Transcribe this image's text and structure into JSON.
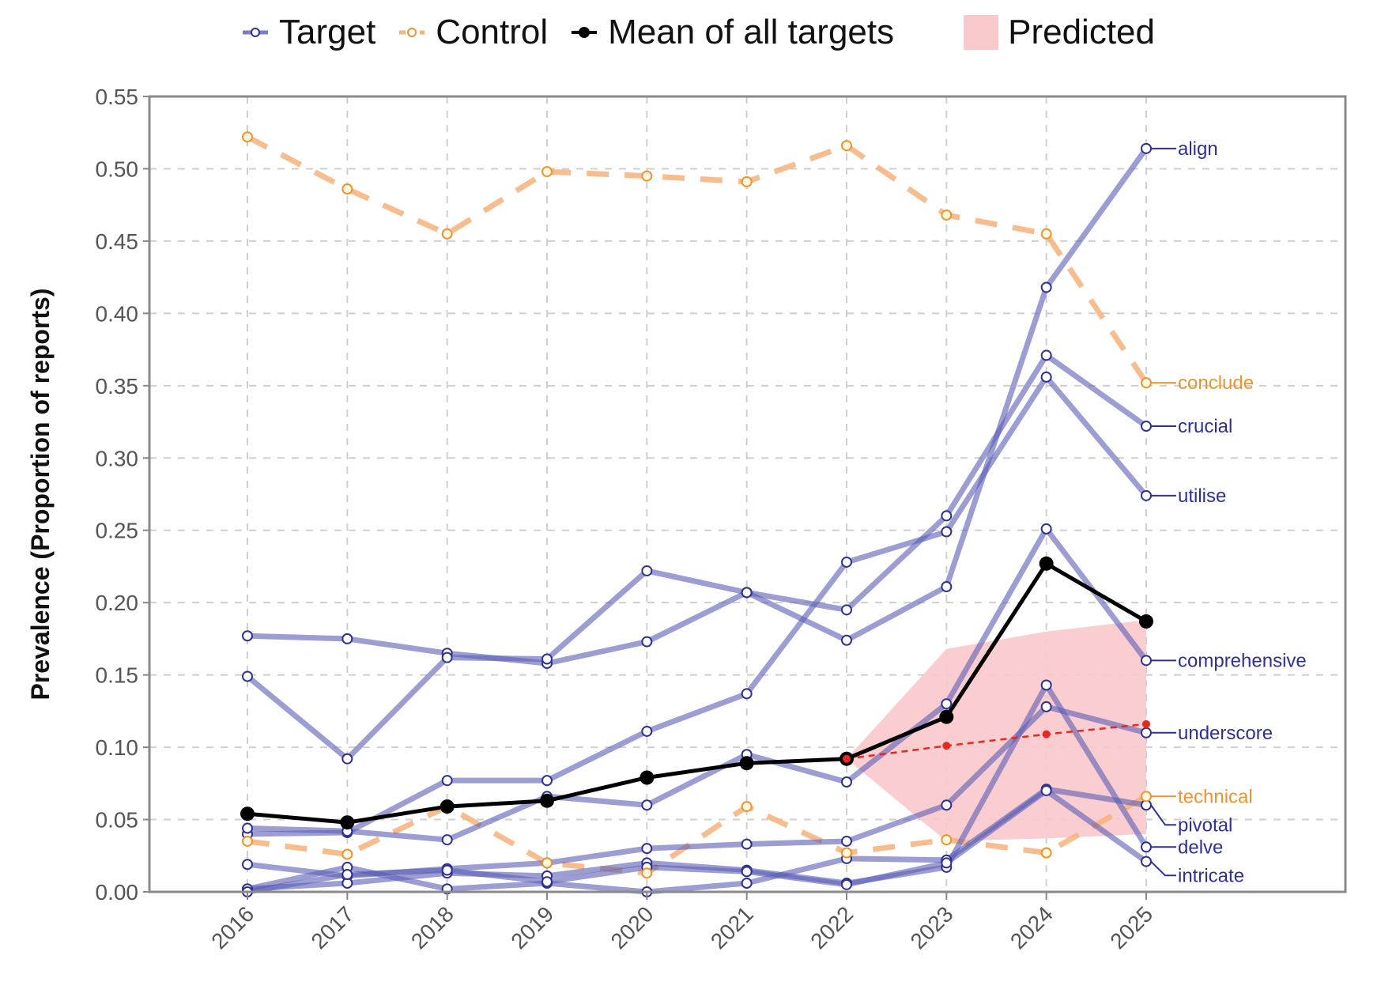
{
  "chart_data": {
    "type": "line",
    "title": "",
    "xlabel": "",
    "ylabel": "Prevalence (Proportion of reports)",
    "x": [
      2016,
      2017,
      2018,
      2019,
      2020,
      2021,
      2022,
      2023,
      2024,
      2025
    ],
    "x_tick_labels": [
      "2016",
      "2017",
      "2018",
      "2019",
      "2020",
      "2021",
      "2022",
      "2023",
      "2024",
      "2025"
    ],
    "ylim": [
      0,
      0.55
    ],
    "y_ticks": [
      0,
      0.05,
      0.1,
      0.15,
      0.2,
      0.25,
      0.3,
      0.35,
      0.4,
      0.45,
      0.5,
      0.55
    ],
    "y_tick_labels": [
      "0.00",
      "0.05",
      "0.10",
      "0.15",
      "0.20",
      "0.25",
      "0.30",
      "0.35",
      "0.40",
      "0.45",
      "0.50",
      "0.55"
    ],
    "grid": true,
    "legend": {
      "placement": "top",
      "entries": [
        {
          "label": "Target",
          "kind": "target"
        },
        {
          "label": "Control",
          "kind": "control"
        },
        {
          "label": "Mean of all targets",
          "kind": "mean"
        },
        {
          "label": "Predicted",
          "kind": "predicted"
        }
      ]
    },
    "colors": {
      "target": "#7b7fc4",
      "target_label": "#2e3192",
      "control": "#f7b27a",
      "control_label": "#f0932b",
      "mean": "#000000",
      "predicted_band": "#f9c9cb",
      "predicted_line": "#e8281e"
    },
    "series": [
      {
        "name": "align",
        "group": "target",
        "values": [
          0.177,
          0.175,
          0.165,
          0.158,
          0.173,
          0.207,
          0.174,
          0.211,
          0.418,
          0.514
        ]
      },
      {
        "name": "crucial",
        "group": "target",
        "values": [
          0.149,
          0.092,
          0.162,
          0.161,
          0.222,
          0.207,
          0.195,
          0.26,
          0.371,
          0.322
        ]
      },
      {
        "name": "utilise",
        "group": "target",
        "values": [
          0.04,
          0.041,
          0.077,
          0.077,
          0.111,
          0.137,
          0.228,
          0.249,
          0.356,
          0.274
        ]
      },
      {
        "name": "comprehensive",
        "group": "target",
        "values": [
          0.044,
          0.042,
          0.036,
          0.066,
          0.06,
          0.095,
          0.076,
          0.13,
          0.251,
          0.16
        ]
      },
      {
        "name": "underscore",
        "group": "target",
        "values": [
          0.019,
          0.011,
          0.016,
          0.02,
          0.03,
          0.033,
          0.035,
          0.06,
          0.128,
          0.11
        ]
      },
      {
        "name": "pivotal",
        "group": "target",
        "values": [
          0.002,
          0.017,
          0.002,
          0.006,
          0.0,
          0.006,
          0.023,
          0.022,
          0.071,
          0.06
        ]
      },
      {
        "name": "delve",
        "group": "target",
        "values": [
          0.002,
          0.006,
          0.013,
          0.011,
          0.02,
          0.015,
          0.006,
          0.017,
          0.143,
          0.031
        ]
      },
      {
        "name": "intricate",
        "group": "target",
        "values": [
          0.0,
          0.012,
          0.015,
          0.007,
          0.017,
          0.014,
          0.005,
          0.02,
          0.07,
          0.021
        ]
      },
      {
        "name": "conclude",
        "group": "control",
        "values": [
          0.522,
          0.486,
          0.455,
          0.498,
          0.495,
          0.491,
          0.516,
          0.468,
          0.455,
          0.352
        ]
      },
      {
        "name": "technical",
        "group": "control",
        "values": [
          0.035,
          0.026,
          0.059,
          0.02,
          0.013,
          0.059,
          0.027,
          0.036,
          0.027,
          0.066
        ]
      },
      {
        "name": "Mean of all targets",
        "group": "mean",
        "values": [
          0.054,
          0.048,
          0.059,
          0.063,
          0.079,
          0.089,
          0.092,
          0.121,
          0.227,
          0.187
        ]
      }
    ],
    "predicted": {
      "x": [
        2022,
        2023,
        2024,
        2025
      ],
      "mean": [
        0.092,
        0.101,
        0.109,
        0.116
      ],
      "upper": [
        0.092,
        0.168,
        0.18,
        0.188
      ],
      "lower": [
        0.092,
        0.035,
        0.037,
        0.04
      ]
    }
  }
}
